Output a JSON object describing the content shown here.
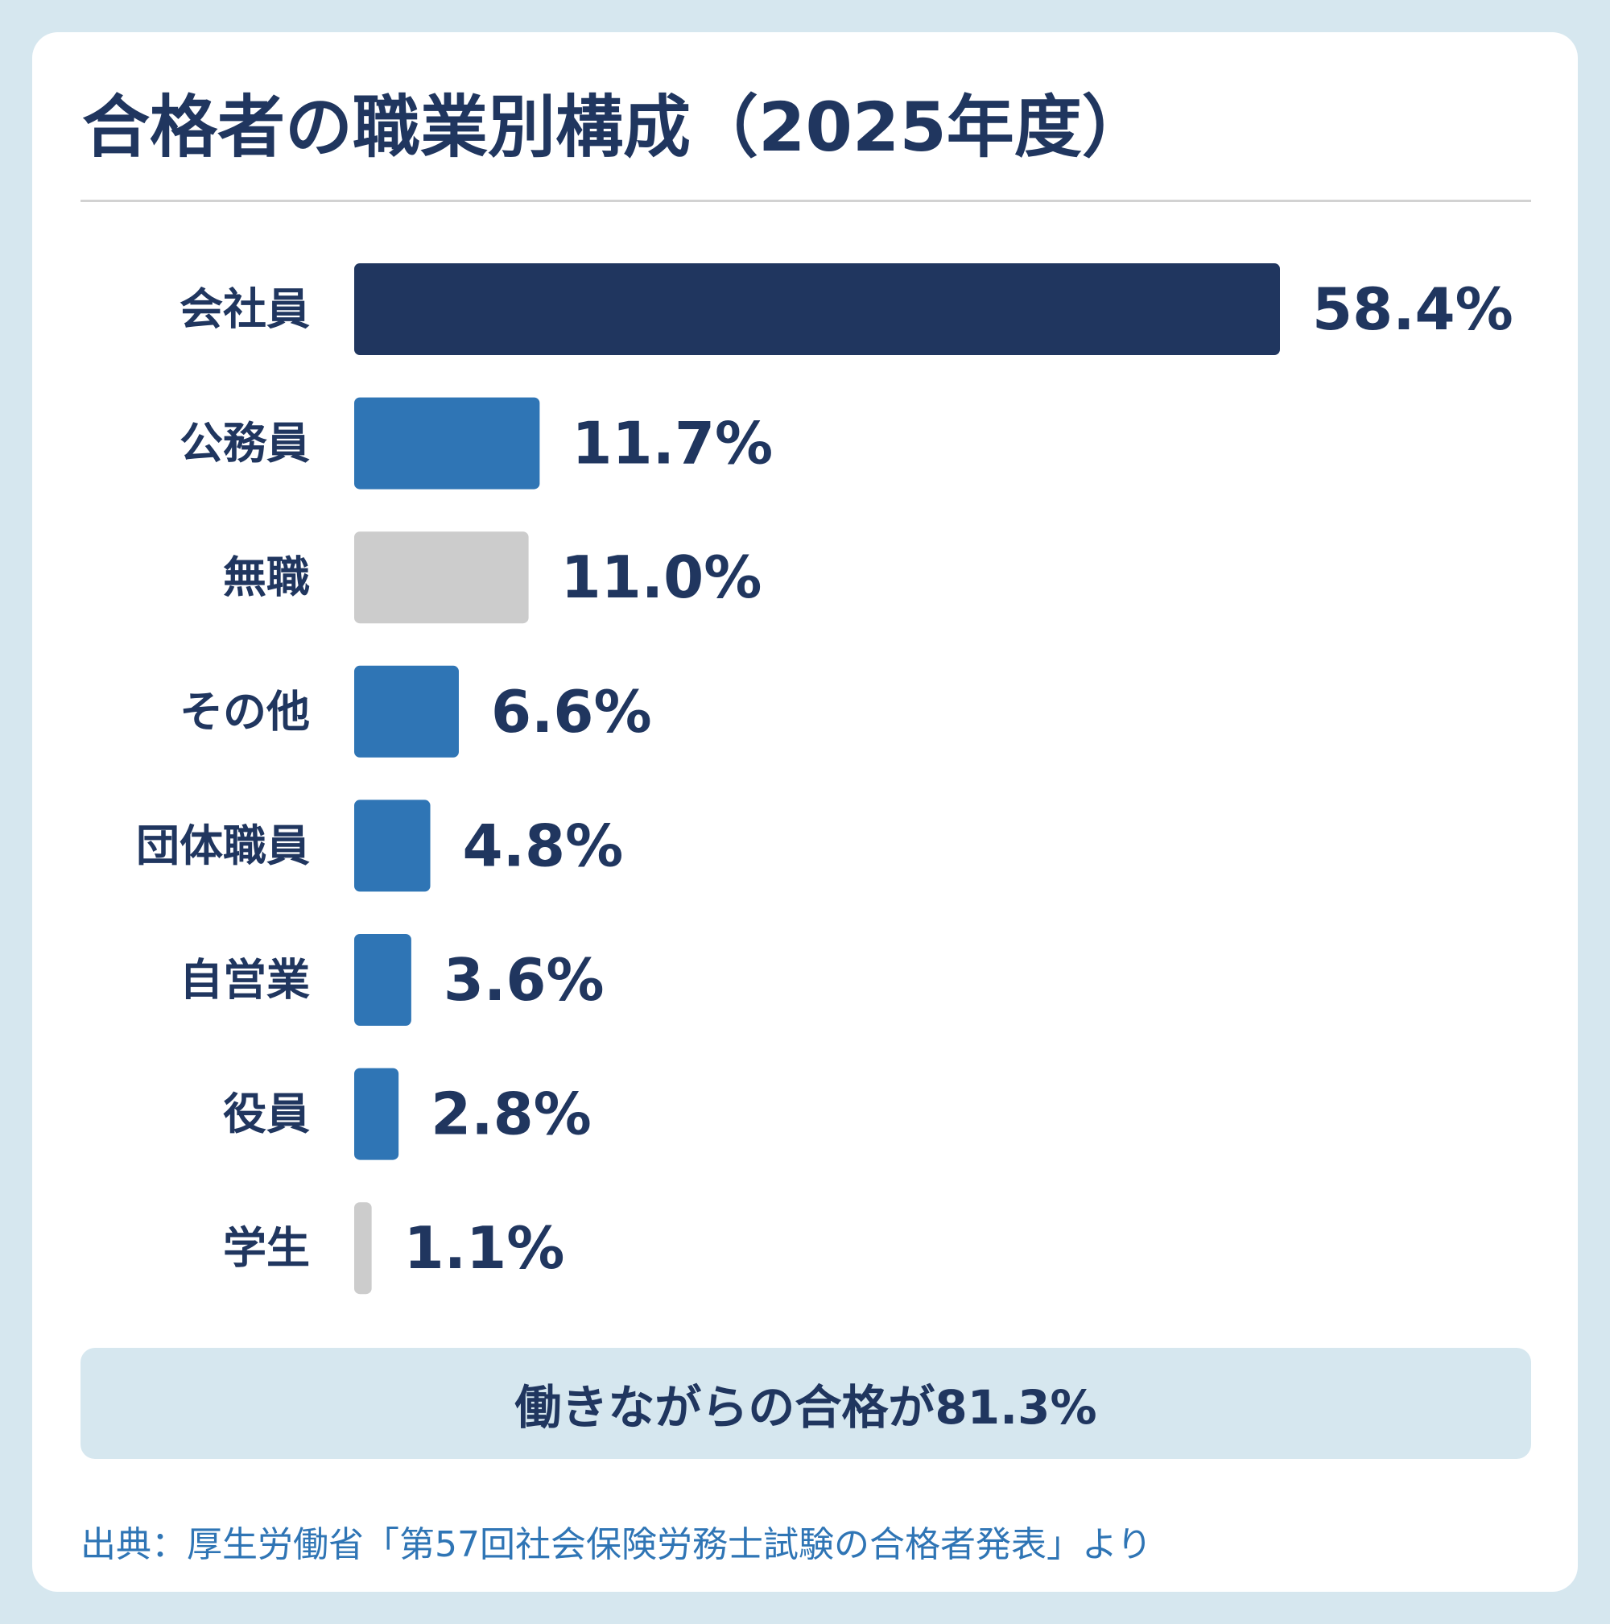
{
  "title": "合格者の職業別構成（2025年度）",
  "summary": "働きながらの合格が81.3%",
  "source": "出典：厚生労働省「第57回社会保険労務士試験の合格者発表」より",
  "colors": {
    "background": "#d6e7ef",
    "primary_bar": "#20365f",
    "accent_bar": "#2f75b5",
    "muted_bar": "#cccccc",
    "text": "#20365f"
  },
  "chart_data": {
    "type": "bar",
    "orientation": "horizontal",
    "unit": "%",
    "categories": [
      "会社員",
      "公務員",
      "無職",
      "その他",
      "団体職員",
      "自営業",
      "役員",
      "学生"
    ],
    "values": [
      58.4,
      11.7,
      11.0,
      6.6,
      4.8,
      3.6,
      2.8,
      1.1
    ],
    "value_labels": [
      "58.4%",
      "11.7%",
      "11.0%",
      "6.6%",
      "4.8%",
      "3.6%",
      "2.8%",
      "1.1%"
    ],
    "bar_colors": [
      "#20365f",
      "#2f75b5",
      "#cccccc",
      "#2f75b5",
      "#2f75b5",
      "#2f75b5",
      "#2f75b5",
      "#cccccc"
    ],
    "title": "",
    "xlabel": "",
    "ylabel": "",
    "grid": false,
    "legend": "none"
  }
}
